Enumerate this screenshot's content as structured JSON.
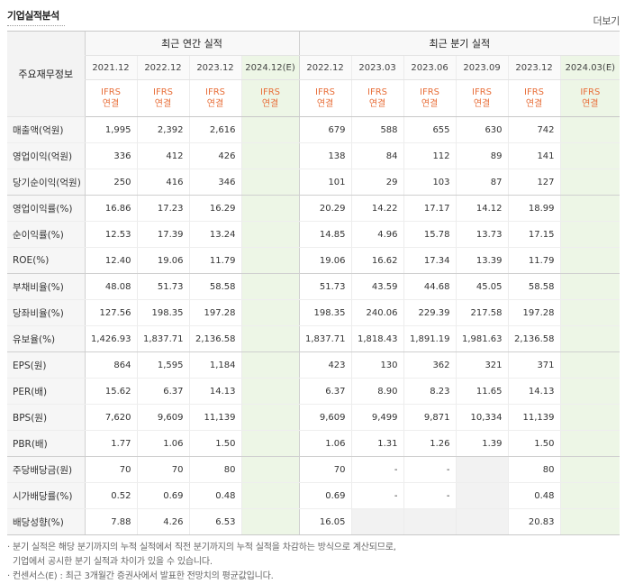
{
  "header": {
    "title": "기업실적분석",
    "more_label": "더보기"
  },
  "table": {
    "item_header": "주요재무정보",
    "annual_group": "최근 연간 실적",
    "quarter_group": "최근 분기 실적",
    "annual_periods": [
      "2021.12",
      "2022.12",
      "2023.12",
      "2024.12(E)"
    ],
    "quarter_periods": [
      "2022.12",
      "2023.03",
      "2023.06",
      "2023.09",
      "2023.12",
      "2024.03(E)"
    ],
    "basis_line1": "IFRS",
    "basis_line2": "연결",
    "rows": [
      {
        "label": "매출액(억원)",
        "values": [
          "1,995",
          "2,392",
          "2,616",
          "",
          "679",
          "588",
          "655",
          "630",
          "742",
          ""
        ]
      },
      {
        "label": "영업이익(억원)",
        "values": [
          "336",
          "412",
          "426",
          "",
          "138",
          "84",
          "112",
          "89",
          "141",
          ""
        ]
      },
      {
        "label": "당기순이익(억원)",
        "values": [
          "250",
          "416",
          "346",
          "",
          "101",
          "29",
          "103",
          "87",
          "127",
          ""
        ]
      },
      {
        "label": "영업이익률(%)",
        "values": [
          "16.86",
          "17.23",
          "16.29",
          "",
          "20.29",
          "14.22",
          "17.17",
          "14.12",
          "18.99",
          ""
        ]
      },
      {
        "label": "순이익률(%)",
        "values": [
          "12.53",
          "17.39",
          "13.24",
          "",
          "14.85",
          "4.96",
          "15.78",
          "13.73",
          "17.15",
          ""
        ]
      },
      {
        "label": "ROE(%)",
        "values": [
          "12.40",
          "19.06",
          "11.79",
          "",
          "19.06",
          "16.62",
          "17.34",
          "13.39",
          "11.79",
          ""
        ]
      },
      {
        "label": "부채비율(%)",
        "values": [
          "48.08",
          "51.73",
          "58.58",
          "",
          "51.73",
          "43.59",
          "44.68",
          "45.05",
          "58.58",
          ""
        ]
      },
      {
        "label": "당좌비율(%)",
        "values": [
          "127.56",
          "198.35",
          "197.28",
          "",
          "198.35",
          "240.06",
          "229.39",
          "217.58",
          "197.28",
          ""
        ]
      },
      {
        "label": "유보율(%)",
        "values": [
          "1,426.93",
          "1,837.71",
          "2,136.58",
          "",
          "1,837.71",
          "1,818.43",
          "1,891.19",
          "1,981.63",
          "2,136.58",
          ""
        ]
      },
      {
        "label": "EPS(원)",
        "values": [
          "864",
          "1,595",
          "1,184",
          "",
          "423",
          "130",
          "362",
          "321",
          "371",
          ""
        ]
      },
      {
        "label": "PER(배)",
        "values": [
          "15.62",
          "6.37",
          "14.13",
          "",
          "6.37",
          "8.90",
          "8.23",
          "11.65",
          "14.13",
          ""
        ]
      },
      {
        "label": "BPS(원)",
        "values": [
          "7,620",
          "9,609",
          "11,139",
          "",
          "9,609",
          "9,499",
          "9,871",
          "10,334",
          "11,139",
          ""
        ]
      },
      {
        "label": "PBR(배)",
        "values": [
          "1.77",
          "1.06",
          "1.50",
          "",
          "1.06",
          "1.31",
          "1.26",
          "1.39",
          "1.50",
          ""
        ]
      },
      {
        "label": "주당배당금(원)",
        "values": [
          "70",
          "70",
          "80",
          "",
          "70",
          "-",
          "-",
          "",
          "80",
          ""
        ]
      },
      {
        "label": "시가배당률(%)",
        "values": [
          "0.52",
          "0.69",
          "0.48",
          "",
          "0.69",
          "-",
          "-",
          "",
          "0.48",
          ""
        ]
      },
      {
        "label": "배당성향(%)",
        "values": [
          "7.88",
          "4.26",
          "6.53",
          "",
          "16.05",
          "",
          "",
          "",
          "20.83",
          ""
        ]
      }
    ]
  },
  "notes": {
    "line1": "· 분기 실적은 해당 분기까지의 누적 실적에서 직전 분기까지의 누적 실적을 차감하는 방식으로 계산되므로,",
    "line2": "기업에서 공시한 분기 실적과 차이가 있을 수 있습니다.",
    "line3": "· 컨센서스(E) : 최근 3개월간 증권사에서 발표한 전망치의 평균값입니다."
  }
}
